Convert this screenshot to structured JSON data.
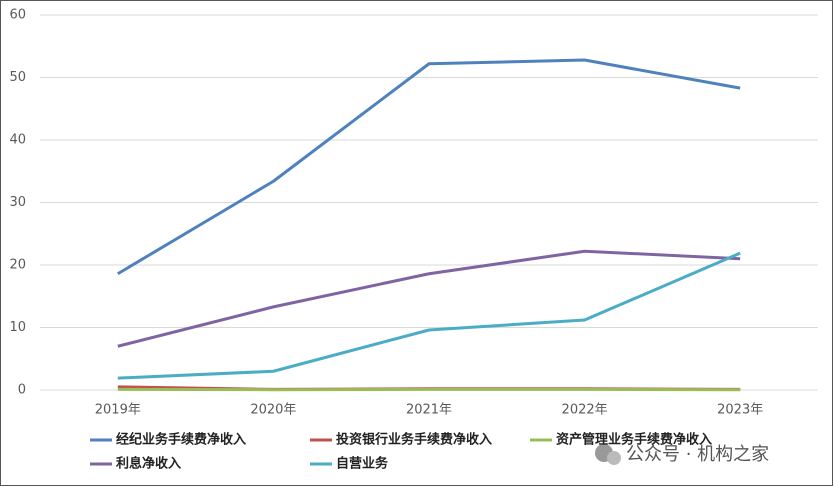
{
  "chart_data": {
    "type": "line",
    "categories": [
      "2019年",
      "2020年",
      "2021年",
      "2022年",
      "2023年"
    ],
    "series": [
      {
        "name": "经纪业务手续费净收入",
        "color": "#4f81bd",
        "values": [
          18.6,
          33.4,
          52.2,
          52.8,
          48.3
        ]
      },
      {
        "name": "投资银行业务手续费净收入",
        "color": "#c0504d",
        "values": [
          0.5,
          0.1,
          0.2,
          0.2,
          0.1
        ]
      },
      {
        "name": "资产管理业务手续费净收入",
        "color": "#9bbb59",
        "values": [
          0.1,
          0.05,
          0.1,
          0.1,
          0.05
        ]
      },
      {
        "name": "利息净收入",
        "color": "#8064a2",
        "values": [
          7.0,
          13.3,
          18.6,
          22.2,
          21.0
        ]
      },
      {
        "name": "自营业务",
        "color": "#4bacc6",
        "values": [
          1.9,
          3.0,
          9.6,
          11.2,
          21.9
        ]
      }
    ],
    "ylim": [
      0,
      60
    ],
    "yticks": [
      0,
      10,
      20,
      30,
      40,
      50,
      60
    ],
    "grid": true,
    "watermark": "公众号 · 机构之家"
  }
}
